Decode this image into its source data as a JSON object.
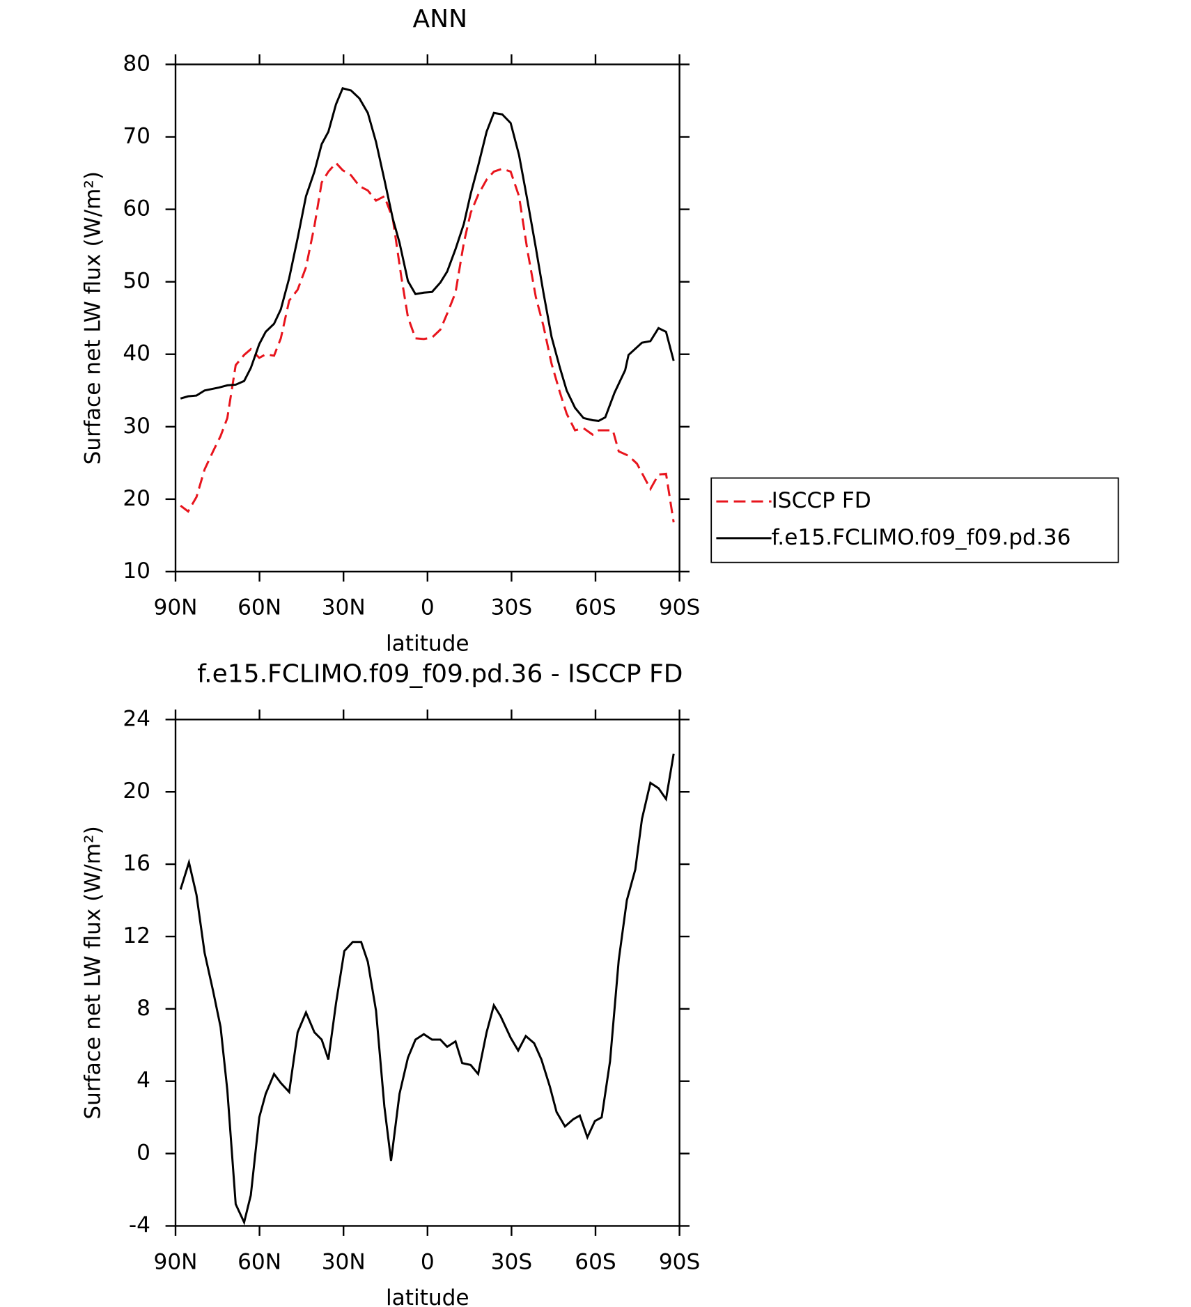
{
  "chart_data": [
    {
      "type": "line",
      "title": "ANN",
      "xlabel": "latitude",
      "ylabel": "Surface net LW flux (W/m²)",
      "xlim": [
        90,
        -90
      ],
      "xticks": [
        {
          "value": 90,
          "label": "90N"
        },
        {
          "value": 60,
          "label": "60N"
        },
        {
          "value": 30,
          "label": "30N"
        },
        0,
        {
          "value": -30,
          "label": "30S"
        },
        {
          "value": -60,
          "label": "60S"
        },
        {
          "value": -90,
          "label": "90S"
        }
      ],
      "ylim": [
        10,
        80
      ],
      "yticks": [
        10,
        20,
        30,
        40,
        50,
        60,
        70,
        80
      ],
      "legend": "right",
      "series": [
        {
          "name": "ISCCP FD",
          "color": "#e8141c",
          "linestyle": "dashed",
          "x": [
            88.2,
            85.5,
            82.5,
            79.6,
            76.6,
            73.9,
            71.5,
            68.5,
            65.5,
            63.1,
            60.1,
            57.8,
            54.8,
            52.4,
            49.4,
            46.4,
            43.4,
            40.4,
            37.8,
            35.4,
            32.7,
            30.3,
            27.3,
            24.3,
            21.3,
            18.4,
            15.4,
            12.4,
            9.4,
            7.0,
            4.3,
            1.3,
            -1.6,
            -4.6,
            -7.0,
            -10.0,
            -13.0,
            -15.4,
            -18.1,
            -21.1,
            -23.7,
            -26.7,
            -29.7,
            -32.7,
            -35.7,
            -38.7,
            -41.4,
            -44.3,
            -47.3,
            -49.7,
            -52.7,
            -55.7,
            -59.0,
            -61.1,
            -66.2,
            -68.3,
            -71.8,
            -74.8,
            -79.6,
            -82.5,
            -85.2,
            -87.9
          ],
          "values": [
            19.1,
            18.3,
            20.3,
            24.1,
            26.6,
            28.7,
            31.2,
            38.5,
            39.9,
            40.7,
            39.5,
            40.0,
            39.8,
            42.2,
            47.4,
            48.9,
            52.0,
            57.7,
            63.7,
            65.2,
            66.4,
            65.4,
            64.7,
            63.2,
            62.6,
            61.2,
            61.8,
            58.7,
            50.8,
            45.1,
            42.2,
            42.1,
            42.3,
            43.4,
            45.6,
            48.5,
            55.4,
            59.5,
            62.0,
            64.1,
            65.2,
            65.6,
            65.2,
            61.8,
            54.3,
            47.9,
            43.9,
            38.7,
            34.7,
            31.8,
            29.5,
            29.8,
            28.9,
            29.5,
            29.5,
            26.6,
            26.0,
            24.9,
            21.4,
            23.4,
            23.5,
            16.8
          ]
        },
        {
          "name": "f.e15.FCLIMO.f09_f09.pd.36",
          "color": "#000000",
          "linestyle": "solid",
          "x": [
            88.2,
            85.5,
            82.5,
            79.6,
            74.5,
            71.5,
            68.5,
            65.5,
            63.1,
            60.1,
            57.8,
            54.8,
            52.4,
            49.4,
            46.4,
            43.4,
            40.4,
            37.8,
            35.4,
            32.7,
            30.3,
            27.3,
            24.3,
            21.3,
            18.4,
            15.4,
            12.4,
            10.0,
            7.0,
            4.3,
            1.3,
            -1.6,
            -4.6,
            -7.0,
            -10.0,
            -13.0,
            -15.4,
            -18.1,
            -21.1,
            -23.7,
            -26.7,
            -29.7,
            -32.7,
            -35.7,
            -38.7,
            -41.4,
            -44.3,
            -47.3,
            -49.7,
            -52.7,
            -55.7,
            -59.0,
            -61.1,
            -63.5,
            -66.8,
            -70.6,
            -71.8,
            -76.6,
            -79.6,
            -82.5,
            -85.2,
            -87.9
          ],
          "values": [
            33.9,
            34.2,
            34.3,
            35.0,
            35.4,
            35.7,
            35.8,
            36.3,
            38.1,
            41.4,
            43.1,
            44.2,
            46.2,
            50.5,
            56.0,
            61.8,
            65.2,
            69.0,
            70.7,
            74.5,
            76.7,
            76.4,
            75.3,
            73.3,
            69.3,
            64.1,
            58.7,
            55.4,
            50.1,
            48.3,
            48.5,
            48.6,
            49.9,
            51.4,
            54.5,
            58.0,
            62.1,
            66.0,
            70.7,
            73.3,
            73.1,
            71.9,
            67.5,
            61.2,
            54.7,
            48.5,
            42.4,
            38.1,
            35.0,
            32.6,
            31.2,
            30.9,
            30.8,
            31.3,
            34.7,
            37.8,
            39.9,
            41.6,
            41.8,
            43.6,
            43.1,
            39.1
          ]
        }
      ]
    },
    {
      "type": "line",
      "title": "f.e15.FCLIMO.f09_f09.pd.36 - ISCCP FD",
      "xlabel": "latitude",
      "ylabel": "Surface net LW flux (W/m²)",
      "xlim": [
        90,
        -90
      ],
      "xticks": [
        {
          "value": 90,
          "label": "90N"
        },
        {
          "value": 60,
          "label": "60N"
        },
        {
          "value": 30,
          "label": "30N"
        },
        0,
        {
          "value": -30,
          "label": "30S"
        },
        {
          "value": -60,
          "label": "60S"
        },
        {
          "value": -90,
          "label": "90S"
        }
      ],
      "ylim": [
        -4,
        24
      ],
      "yticks": [
        -4,
        0,
        4,
        8,
        12,
        16,
        20,
        24
      ],
      "series": [
        {
          "color": "#000000",
          "linestyle": "solid",
          "x": [
            88.2,
            85.2,
            82.5,
            79.6,
            76.6,
            73.9,
            71.5,
            68.5,
            65.5,
            63.1,
            60.1,
            57.8,
            54.8,
            52.4,
            49.4,
            46.4,
            43.4,
            40.4,
            37.8,
            35.4,
            32.7,
            29.7,
            26.7,
            23.7,
            21.3,
            18.4,
            15.4,
            13.0,
            10.0,
            7.0,
            4.3,
            1.3,
            -1.6,
            -4.6,
            -7.0,
            -10.0,
            -12.4,
            -15.4,
            -18.1,
            -21.1,
            -23.7,
            -26.1,
            -29.7,
            -32.4,
            -35.1,
            -38.1,
            -40.7,
            -43.7,
            -46.1,
            -49.1,
            -52.1,
            -54.4,
            -57.1,
            -59.8,
            -62.2,
            -65.2,
            -68.3,
            -71.2,
            -74.2,
            -76.6,
            -79.6,
            -82.5,
            -85.2,
            -87.9
          ],
          "values": [
            14.6,
            16.1,
            14.3,
            11.1,
            9.0,
            7.0,
            3.5,
            -2.8,
            -3.8,
            -2.3,
            2.0,
            3.3,
            4.4,
            3.9,
            3.4,
            6.7,
            7.8,
            6.7,
            6.3,
            5.2,
            8.3,
            11.2,
            11.7,
            11.7,
            10.6,
            7.9,
            2.6,
            -0.4,
            3.3,
            5.3,
            6.3,
            6.6,
            6.3,
            6.3,
            5.9,
            6.2,
            5.0,
            4.9,
            4.4,
            6.7,
            8.2,
            7.6,
            6.4,
            5.7,
            6.5,
            6.1,
            5.2,
            3.7,
            2.3,
            1.5,
            1.9,
            2.1,
            0.9,
            1.8,
            2.0,
            5.1,
            10.7,
            14.0,
            15.7,
            18.5,
            20.5,
            20.2,
            19.6,
            22.1
          ]
        }
      ]
    }
  ]
}
